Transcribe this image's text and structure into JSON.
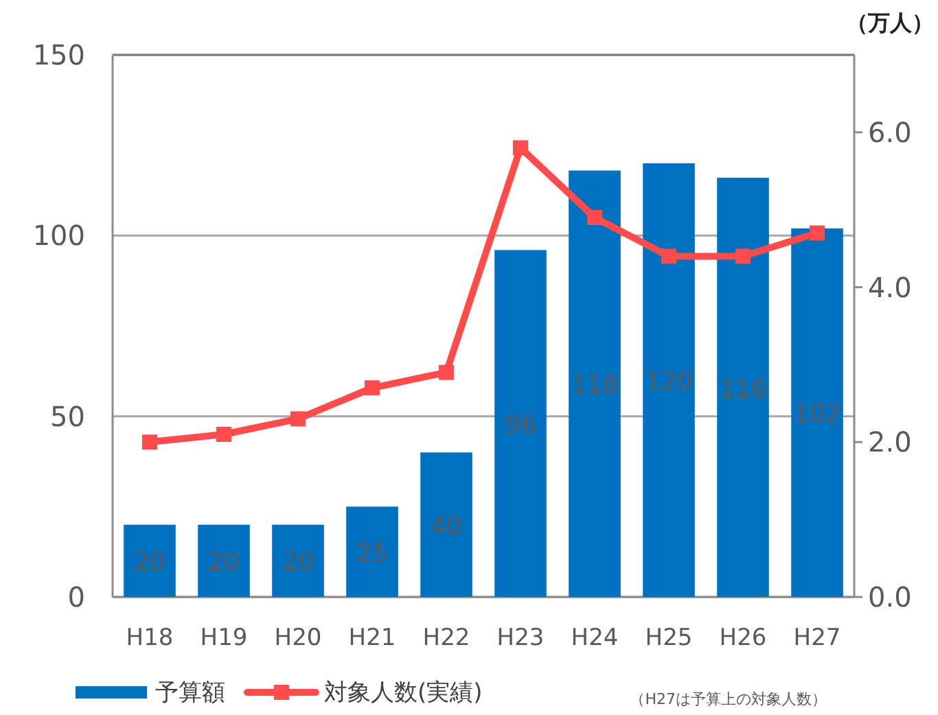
{
  "chart_data": {
    "type": "bar",
    "categories": [
      "H18",
      "H19",
      "H20",
      "H21",
      "H22",
      "H23",
      "H24",
      "H25",
      "H26",
      "H27"
    ],
    "series": [
      {
        "name": "予算額",
        "color": "#0070c0",
        "values": [
          20,
          20,
          20,
          25,
          40,
          96,
          118,
          120,
          116,
          102
        ],
        "value_labels": [
          "20",
          "20",
          "20",
          "25",
          "40",
          "96",
          "118",
          "120",
          "116",
          "102"
        ]
      },
      {
        "name": "対象人数(実績)",
        "type": "line",
        "axis": "y2",
        "color": "#ff4b4b",
        "marker": "square",
        "values": [
          2.0,
          2.1,
          2.3,
          2.7,
          2.9,
          5.8,
          4.9,
          4.4,
          4.4,
          4.7
        ]
      }
    ],
    "ylim": [
      0,
      150
    ],
    "yticks": [
      0,
      50,
      100,
      150
    ],
    "y2lim": [
      0,
      7
    ],
    "y2ticks": [
      {
        "value": 0,
        "label": "0.0"
      },
      {
        "value": 2,
        "label": "2.0"
      },
      {
        "value": 4,
        "label": "4.0"
      },
      {
        "value": 6,
        "label": "6.0"
      }
    ],
    "y2label": "（万人）",
    "annotations": [
      "（H27は予算上の対象人数）"
    ],
    "legend": "bottom",
    "grid": "y"
  }
}
